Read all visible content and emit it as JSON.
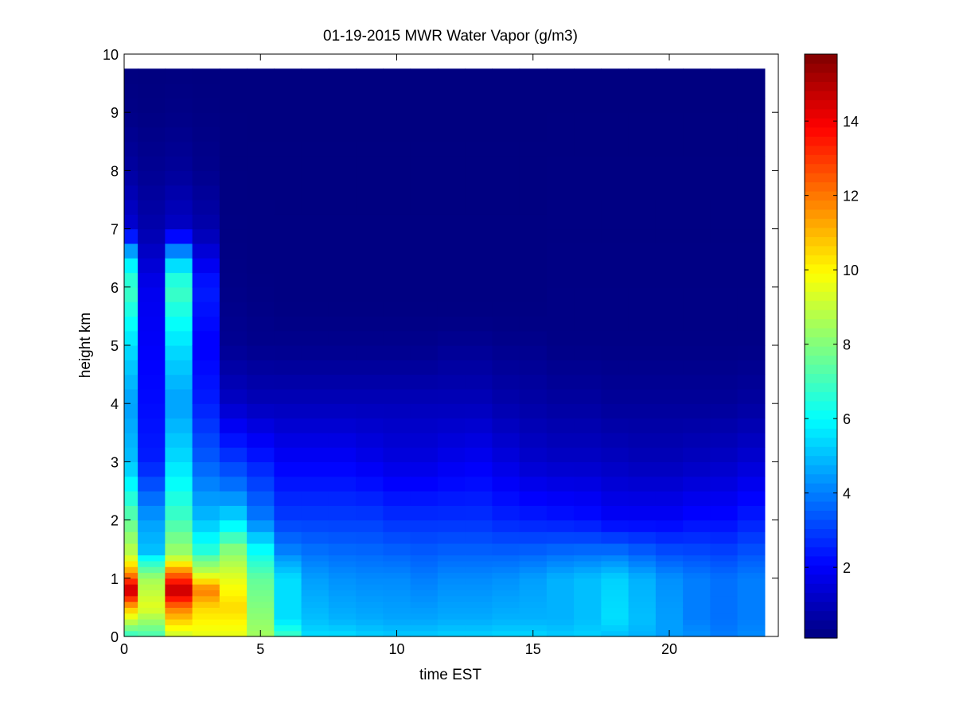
{
  "chart_data": {
    "type": "heatmap",
    "title": "01-19-2015 MWR Water Vapor (g/m3)",
    "xlabel": "time EST",
    "ylabel": "height km",
    "xlim": [
      0,
      24
    ],
    "ylim": [
      0,
      10
    ],
    "xticks": [
      "0",
      "5",
      "10",
      "15",
      "20"
    ],
    "xtick_values": [
      0,
      5,
      10,
      15,
      20
    ],
    "yticks": [
      "0",
      "1",
      "2",
      "3",
      "4",
      "5",
      "6",
      "7",
      "8",
      "9",
      "10"
    ],
    "ytick_values": [
      0,
      1,
      2,
      3,
      4,
      5,
      6,
      7,
      8,
      9,
      10
    ],
    "colormap": "jet",
    "clim": [
      0.1,
      15.8
    ],
    "colorbar_ticks": [
      "2",
      "4",
      "6",
      "8",
      "10",
      "12",
      "14"
    ],
    "colorbar_tick_values": [
      2,
      4,
      6,
      8,
      10,
      12,
      14
    ],
    "x_edges": [
      0,
      0.5,
      1.5,
      2.5,
      3.5,
      4.5,
      5.5,
      6.5,
      7.5,
      8.5,
      9.5,
      10.5,
      11.5,
      12.5,
      13.5,
      14.5,
      15.5,
      16.5,
      17.5,
      18.5,
      19.5,
      20.5,
      21.5,
      22.5,
      23.5
    ],
    "height_levels": [
      0,
      0.1,
      0.2,
      0.3,
      0.4,
      0.5,
      0.6,
      0.7,
      0.8,
      0.9,
      1.0,
      1.1,
      1.2,
      1.3,
      1.4,
      1.6,
      1.8,
      2.0,
      2.25,
      2.5,
      2.75,
      3.0,
      3.25,
      3.5,
      3.75,
      4.0,
      4.25,
      4.5,
      4.75,
      5.0,
      5.25,
      5.5,
      5.75,
      6.0,
      6.25,
      6.5,
      6.75,
      7.0,
      7.25,
      7.5,
      7.75,
      8.0,
      8.25,
      8.5,
      8.75,
      9.0,
      9.25,
      9.5,
      9.75
    ],
    "profiles": [
      {
        "time": 0.0,
        "points": [
          [
            0,
            6.6
          ],
          [
            0.5,
            11.0
          ],
          [
            0.8,
            15.0
          ],
          [
            1.1,
            11.5
          ],
          [
            1.4,
            9.0
          ],
          [
            2.0,
            7.5
          ],
          [
            3.0,
            5.0
          ],
          [
            4.0,
            4.5
          ],
          [
            5.0,
            5.5
          ],
          [
            6.0,
            7.0
          ],
          [
            6.5,
            5.5
          ],
          [
            7.0,
            1.4
          ],
          [
            8.0,
            0.6
          ],
          [
            9.0,
            0.2
          ],
          [
            9.75,
            0.1
          ]
        ]
      },
      {
        "time": 1.0,
        "points": [
          [
            0,
            7.0
          ],
          [
            0.5,
            9.5
          ],
          [
            1.0,
            8.5
          ],
          [
            1.5,
            5.0
          ],
          [
            2.0,
            4.5
          ],
          [
            3.0,
            2.5
          ],
          [
            4.0,
            2.2
          ],
          [
            5.0,
            2.0
          ],
          [
            6.0,
            1.8
          ],
          [
            7.0,
            0.8
          ],
          [
            8.0,
            0.4
          ],
          [
            9.0,
            0.15
          ],
          [
            9.75,
            0.1
          ]
        ]
      },
      {
        "time": 2.0,
        "points": [
          [
            0,
            9.0
          ],
          [
            0.5,
            12.0
          ],
          [
            0.8,
            15.0
          ],
          [
            1.1,
            12.0
          ],
          [
            1.4,
            8.5
          ],
          [
            2.0,
            7.0
          ],
          [
            3.0,
            5.5
          ],
          [
            4.0,
            4.5
          ],
          [
            5.0,
            5.5
          ],
          [
            6.0,
            7.0
          ],
          [
            6.5,
            5.0
          ],
          [
            7.0,
            1.2
          ],
          [
            8.0,
            0.5
          ],
          [
            9.0,
            0.2
          ],
          [
            9.75,
            0.1
          ]
        ]
      },
      {
        "time": 3.0,
        "points": [
          [
            0,
            9.5
          ],
          [
            0.5,
            10.5
          ],
          [
            0.8,
            12.0
          ],
          [
            1.1,
            9.0
          ],
          [
            1.5,
            6.5
          ],
          [
            2.0,
            5.0
          ],
          [
            3.0,
            3.5
          ],
          [
            4.0,
            2.5
          ],
          [
            5.0,
            2.0
          ],
          [
            6.0,
            2.5
          ],
          [
            7.0,
            0.8
          ],
          [
            8.0,
            0.3
          ],
          [
            9.0,
            0.15
          ],
          [
            9.75,
            0.1
          ]
        ]
      },
      {
        "time": 4.0,
        "points": [
          [
            0,
            9.5
          ],
          [
            0.5,
            10.5
          ],
          [
            1.0,
            9.5
          ],
          [
            1.5,
            8.0
          ],
          [
            2.0,
            5.5
          ],
          [
            2.5,
            4.0
          ],
          [
            3.0,
            3.0
          ],
          [
            4.0,
            1.2
          ],
          [
            5.0,
            0.4
          ],
          [
            6.0,
            0.2
          ],
          [
            7.0,
            0.15
          ],
          [
            9.75,
            0.1
          ]
        ]
      },
      {
        "time": 5.0,
        "points": [
          [
            0,
            8.5
          ],
          [
            0.5,
            8.0
          ],
          [
            1.0,
            7.5
          ],
          [
            1.5,
            6.0
          ],
          [
            2.0,
            4.0
          ],
          [
            3.0,
            2.5
          ],
          [
            4.0,
            1.0
          ],
          [
            5.0,
            0.3
          ],
          [
            6.0,
            0.15
          ],
          [
            9.75,
            0.1
          ]
        ]
      },
      {
        "time": 6.0,
        "points": [
          [
            0,
            7.0
          ],
          [
            0.3,
            5.5
          ],
          [
            1.0,
            5.5
          ],
          [
            1.5,
            4.0
          ],
          [
            2.0,
            3.0
          ],
          [
            3.0,
            2.0
          ],
          [
            4.0,
            1.0
          ],
          [
            4.8,
            0.4
          ],
          [
            5.5,
            0.15
          ],
          [
            9.75,
            0.1
          ]
        ]
      },
      {
        "time": 7.0,
        "points": [
          [
            0,
            5.5
          ],
          [
            0.3,
            5.0
          ],
          [
            1.0,
            4.5
          ],
          [
            2.0,
            3.0
          ],
          [
            3.0,
            2.0
          ],
          [
            4.0,
            1.0
          ],
          [
            4.8,
            0.4
          ],
          [
            5.5,
            0.15
          ],
          [
            9.75,
            0.1
          ]
        ]
      },
      {
        "time": 8.0,
        "points": [
          [
            0,
            5.5
          ],
          [
            0.3,
            4.8
          ],
          [
            1.0,
            4.3
          ],
          [
            2.0,
            3.0
          ],
          [
            3.0,
            2.0
          ],
          [
            4.0,
            1.0
          ],
          [
            4.8,
            0.4
          ],
          [
            5.5,
            0.15
          ],
          [
            9.75,
            0.1
          ]
        ]
      },
      {
        "time": 9.0,
        "points": [
          [
            0,
            5.3
          ],
          [
            0.3,
            4.7
          ],
          [
            1.0,
            4.2
          ],
          [
            2.0,
            3.0
          ],
          [
            3.0,
            1.8
          ],
          [
            4.0,
            1.0
          ],
          [
            4.8,
            0.4
          ],
          [
            5.5,
            0.15
          ],
          [
            9.75,
            0.1
          ]
        ]
      },
      {
        "time": 10.0,
        "points": [
          [
            0,
            5.2
          ],
          [
            0.3,
            4.6
          ],
          [
            1.0,
            4.2
          ],
          [
            2.0,
            2.8
          ],
          [
            3.0,
            1.6
          ],
          [
            4.0,
            1.0
          ],
          [
            4.8,
            0.4
          ],
          [
            5.5,
            0.15
          ],
          [
            9.75,
            0.1
          ]
        ]
      },
      {
        "time": 11.0,
        "points": [
          [
            0,
            5.2
          ],
          [
            0.3,
            4.6
          ],
          [
            1.0,
            4.0
          ],
          [
            2.0,
            2.8
          ],
          [
            3.0,
            1.6
          ],
          [
            4.0,
            1.0
          ],
          [
            4.8,
            0.4
          ],
          [
            5.5,
            0.15
          ],
          [
            9.75,
            0.1
          ]
        ]
      },
      {
        "time": 12.0,
        "points": [
          [
            0,
            5.3
          ],
          [
            0.3,
            4.7
          ],
          [
            1.0,
            4.2
          ],
          [
            2.0,
            2.8
          ],
          [
            3.0,
            1.8
          ],
          [
            4.0,
            1.0
          ],
          [
            5.0,
            0.4
          ],
          [
            5.5,
            0.15
          ],
          [
            9.75,
            0.1
          ]
        ]
      },
      {
        "time": 13.0,
        "points": [
          [
            0,
            5.3
          ],
          [
            0.3,
            4.7
          ],
          [
            1.0,
            4.2
          ],
          [
            2.0,
            2.8
          ],
          [
            3.0,
            1.9
          ],
          [
            4.0,
            1.0
          ],
          [
            5.0,
            0.4
          ],
          [
            5.5,
            0.15
          ],
          [
            9.75,
            0.1
          ]
        ]
      },
      {
        "time": 14.0,
        "points": [
          [
            0,
            5.4
          ],
          [
            0.3,
            4.8
          ],
          [
            1.0,
            4.3
          ],
          [
            2.0,
            2.6
          ],
          [
            3.0,
            1.6
          ],
          [
            4.0,
            0.8
          ],
          [
            5.0,
            0.3
          ],
          [
            5.5,
            0.15
          ],
          [
            9.75,
            0.1
          ]
        ]
      },
      {
        "time": 15.0,
        "points": [
          [
            0,
            5.4
          ],
          [
            0.3,
            4.8
          ],
          [
            1.0,
            4.5
          ],
          [
            2.0,
            2.5
          ],
          [
            3.0,
            1.3
          ],
          [
            4.0,
            0.7
          ],
          [
            5.0,
            0.3
          ],
          [
            5.5,
            0.15
          ],
          [
            9.75,
            0.1
          ]
        ]
      },
      {
        "time": 16.0,
        "points": [
          [
            0,
            5.2
          ],
          [
            0.3,
            4.8
          ],
          [
            1.0,
            4.8
          ],
          [
            2.0,
            2.4
          ],
          [
            3.0,
            1.2
          ],
          [
            4.0,
            0.6
          ],
          [
            5.0,
            0.2
          ],
          [
            9.75,
            0.1
          ]
        ]
      },
      {
        "time": 17.0,
        "points": [
          [
            0,
            5.3
          ],
          [
            0.3,
            5.0
          ],
          [
            1.0,
            5.0
          ],
          [
            2.0,
            2.3
          ],
          [
            3.0,
            1.2
          ],
          [
            4.0,
            0.6
          ],
          [
            5.0,
            0.2
          ],
          [
            9.75,
            0.1
          ]
        ]
      },
      {
        "time": 18.0,
        "points": [
          [
            0,
            5.0
          ],
          [
            0.3,
            5.5
          ],
          [
            1.0,
            5.3
          ],
          [
            2.0,
            2.0
          ],
          [
            3.0,
            1.1
          ],
          [
            4.0,
            0.5
          ],
          [
            5.0,
            0.2
          ],
          [
            9.75,
            0.1
          ]
        ]
      },
      {
        "time": 19.0,
        "points": [
          [
            0,
            4.8
          ],
          [
            0.3,
            5.0
          ],
          [
            1.0,
            4.8
          ],
          [
            2.0,
            2.0
          ],
          [
            3.0,
            1.0
          ],
          [
            4.0,
            0.5
          ],
          [
            5.0,
            0.2
          ],
          [
            9.75,
            0.1
          ]
        ]
      },
      {
        "time": 20.0,
        "points": [
          [
            0,
            4.5
          ],
          [
            0.3,
            4.5
          ],
          [
            1.0,
            4.3
          ],
          [
            2.0,
            2.0
          ],
          [
            3.0,
            1.0
          ],
          [
            4.0,
            0.5
          ],
          [
            5.0,
            0.2
          ],
          [
            9.75,
            0.1
          ]
        ]
      },
      {
        "time": 21.0,
        "points": [
          [
            0,
            4.3
          ],
          [
            0.3,
            4.0
          ],
          [
            1.0,
            4.0
          ],
          [
            2.0,
            2.2
          ],
          [
            3.0,
            1.1
          ],
          [
            4.0,
            0.5
          ],
          [
            5.0,
            0.2
          ],
          [
            9.75,
            0.1
          ]
        ]
      },
      {
        "time": 22.0,
        "points": [
          [
            0,
            4.0
          ],
          [
            0.3,
            3.8
          ],
          [
            1.0,
            3.8
          ],
          [
            2.0,
            2.2
          ],
          [
            3.0,
            1.2
          ],
          [
            4.0,
            0.5
          ],
          [
            5.0,
            0.2
          ],
          [
            9.75,
            0.1
          ]
        ]
      },
      {
        "time": 23.0,
        "points": [
          [
            0,
            4.2
          ],
          [
            0.3,
            4.0
          ],
          [
            1.0,
            4.0
          ],
          [
            2.0,
            2.5
          ],
          [
            3.0,
            1.4
          ],
          [
            4.0,
            0.6
          ],
          [
            5.0,
            0.2
          ],
          [
            9.75,
            0.1
          ]
        ]
      }
    ],
    "grid": false,
    "legend": "colorbar-right"
  }
}
